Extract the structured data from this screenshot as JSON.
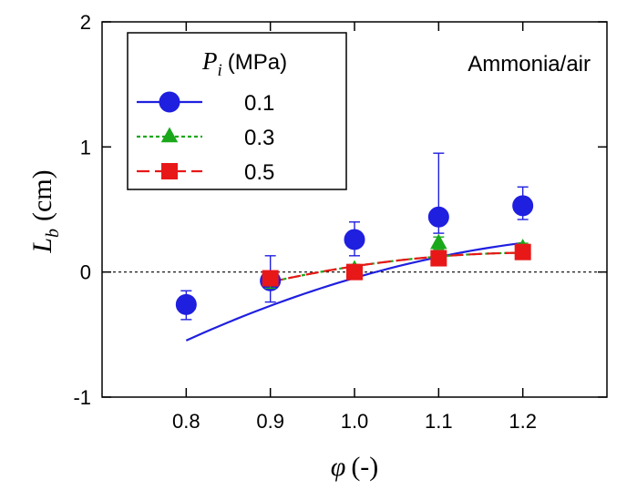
{
  "chart_data": {
    "type": "scatter",
    "x_label_symbol": "φ",
    "x_label_unit": "(-)",
    "y_label_symbol": "L",
    "y_label_sub": "b",
    "y_label_unit": "(cm)",
    "xlim": [
      0.7,
      1.3
    ],
    "ylim": [
      -1,
      2
    ],
    "x_ticks": [
      "0.8",
      "0.9",
      "1.0",
      "1.1",
      "1.2"
    ],
    "x_tick_values": [
      0.8,
      0.9,
      1.0,
      1.1,
      1.2
    ],
    "y_ticks": [
      "-1",
      "0",
      "1",
      "2"
    ],
    "y_tick_values": [
      -1,
      0,
      1,
      2
    ],
    "annotation": "Ammonia/air",
    "legend_title_symbol": "P",
    "legend_title_sub": "i",
    "legend_title_unit": "(MPa)",
    "legend_position": "top-left",
    "series": [
      {
        "name": "0.1",
        "color": "#1f1fe0",
        "marker": "circle",
        "line": "solid",
        "x": [
          0.8,
          0.9,
          1.0,
          1.1,
          1.2
        ],
        "y": [
          -0.26,
          -0.07,
          0.26,
          0.44,
          0.53
        ],
        "err_low": [
          0.12,
          0.17,
          0.13,
          0.13,
          0.11
        ],
        "err_high": [
          0.11,
          0.2,
          0.14,
          0.51,
          0.15
        ],
        "fit_x": [
          0.8,
          1.2
        ],
        "fit_coef": [
          -0.27,
          2.5,
          -2.75
        ]
      },
      {
        "name": "0.3",
        "color": "#1aa81a",
        "marker": "triangle",
        "line": "dotted",
        "x": [
          0.9,
          1.0,
          1.1,
          1.2
        ],
        "y": [
          -0.07,
          0.02,
          0.23,
          0.19
        ],
        "err_low": [
          0.06,
          0.04,
          0.05,
          0.04
        ],
        "err_high": [
          0.06,
          0.04,
          0.05,
          0.04
        ],
        "fit_x": [
          0.9,
          1.2
        ],
        "fit_coef": [
          -0.08,
          1.5,
          -2.4
        ]
      },
      {
        "name": "0.5",
        "color": "#e81818",
        "marker": "square",
        "line": "dashed",
        "x": [
          0.9,
          1.0,
          1.1,
          1.2
        ],
        "y": [
          -0.05,
          0.0,
          0.11,
          0.16
        ],
        "err_low": [
          0.03,
          0.03,
          0.05,
          0.03
        ],
        "err_high": [
          0.03,
          0.03,
          0.05,
          0.03
        ],
        "fit_x": [
          0.9,
          1.2
        ],
        "fit_coef": [
          -0.08,
          1.5,
          -2.4
        ]
      }
    ]
  }
}
